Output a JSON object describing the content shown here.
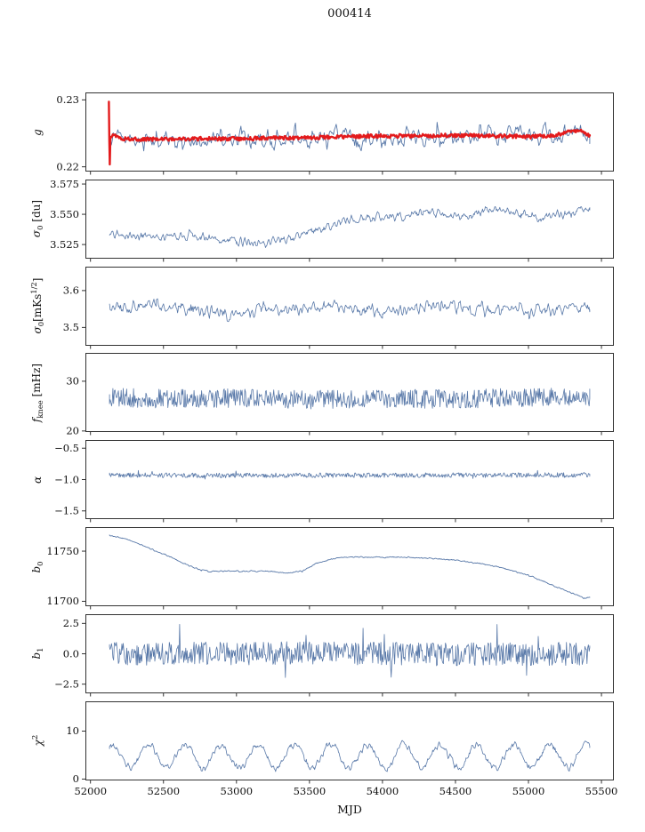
{
  "chart_data": {
    "type": "line",
    "title": "000414",
    "xlabel": "MJD",
    "x_axis": {
      "range": [
        51965,
        55585
      ],
      "ticks": [
        52000,
        52500,
        53000,
        53500,
        54000,
        54500,
        55000,
        55500
      ],
      "tick_labels": [
        "52000",
        "52500",
        "53000",
        "53500",
        "54000",
        "54500",
        "55000",
        "55500"
      ]
    },
    "panels": [
      {
        "name": "g",
        "ylabel_parts": [
          {
            "t": "g",
            "s": "it"
          }
        ],
        "ylim": [
          0.2193,
          0.2311
        ],
        "yticks": [
          {
            "v": 0.22,
            "label": "0.22"
          },
          {
            "v": 0.23,
            "label": "0.23"
          }
        ],
        "series": [
          {
            "name": "g-blue",
            "color": "#5878a8",
            "width": 0.9,
            "points": 520,
            "noise": 0.0021,
            "smooth": 2,
            "tail": {
              "p": 0.04,
              "m": 2.2
            },
            "trend": [
              [
                52130,
                0.2246
              ],
              [
                52250,
                0.224
              ],
              [
                52450,
                0.2239
              ],
              [
                52700,
                0.2239
              ],
              [
                52900,
                0.2241
              ],
              [
                53100,
                0.2239
              ],
              [
                53300,
                0.2238
              ],
              [
                53500,
                0.2242
              ],
              [
                53700,
                0.2244
              ],
              [
                53900,
                0.2245
              ],
              [
                54100,
                0.2246
              ],
              [
                54300,
                0.2247
              ],
              [
                54500,
                0.2246
              ],
              [
                54700,
                0.2247
              ],
              [
                54900,
                0.2246
              ],
              [
                55100,
                0.2246
              ],
              [
                55250,
                0.225
              ],
              [
                55350,
                0.2253
              ],
              [
                55420,
                0.2246
              ]
            ]
          },
          {
            "name": "g-red",
            "color": "#e31a1c",
            "width": 2.4,
            "points": 620,
            "noise": 0.00028,
            "smooth": 1,
            "trend": [
              [
                52126,
                0.2297
              ],
              [
                52129,
                0.224
              ],
              [
                52132,
                0.2206
              ],
              [
                52136,
                0.2246
              ],
              [
                52160,
                0.2248
              ],
              [
                52220,
                0.2242
              ],
              [
                52400,
                0.2241
              ],
              [
                52700,
                0.2242
              ],
              [
                53000,
                0.2242
              ],
              [
                53300,
                0.2243
              ],
              [
                53600,
                0.2244
              ],
              [
                53900,
                0.2246
              ],
              [
                54200,
                0.2246
              ],
              [
                54500,
                0.2247
              ],
              [
                54800,
                0.2246
              ],
              [
                55000,
                0.2245
              ],
              [
                55150,
                0.2246
              ],
              [
                55280,
                0.2252
              ],
              [
                55360,
                0.2255
              ],
              [
                55420,
                0.2245
              ]
            ]
          }
        ]
      },
      {
        "name": "sigma0-du",
        "ylabel_parts": [
          {
            "t": "σ",
            "s": "it"
          },
          {
            "t": "0",
            "s": "sub"
          },
          {
            "t": " [du]",
            "s": "n"
          }
        ],
        "ylim": [
          3.5133,
          3.5787
        ],
        "yticks": [
          {
            "v": 3.525,
            "label": "3.525"
          },
          {
            "v": 3.55,
            "label": "3.550"
          },
          {
            "v": 3.575,
            "label": "3.575"
          }
        ],
        "series": [
          {
            "name": "sigma0-du-line",
            "color": "#5878a8",
            "width": 0.8,
            "points": 700,
            "noise": 0.0055,
            "smooth": 2,
            "trend": [
              [
                52130,
                3.535
              ],
              [
                52300,
                3.533
              ],
              [
                52500,
                3.531
              ],
              [
                52700,
                3.533
              ],
              [
                52850,
                3.53
              ],
              [
                53000,
                3.528
              ],
              [
                53150,
                3.526
              ],
              [
                53300,
                3.529
              ],
              [
                53450,
                3.533
              ],
              [
                53600,
                3.539
              ],
              [
                53750,
                3.545
              ],
              [
                53900,
                3.548
              ],
              [
                54050,
                3.547
              ],
              [
                54200,
                3.55
              ],
              [
                54350,
                3.551
              ],
              [
                54500,
                3.548
              ],
              [
                54650,
                3.552
              ],
              [
                54800,
                3.554
              ],
              [
                54950,
                3.55
              ],
              [
                55100,
                3.547
              ],
              [
                55250,
                3.551
              ],
              [
                55420,
                3.555
              ]
            ]
          }
        ]
      },
      {
        "name": "sigma0-mks",
        "ylabel_parts": [
          {
            "t": "σ",
            "s": "it"
          },
          {
            "t": "0",
            "s": "sub"
          },
          {
            "t": "[mKs",
            "s": "n"
          },
          {
            "t": "1/2",
            "s": "sup"
          },
          {
            "t": "]",
            "s": "n"
          }
        ],
        "ylim": [
          3.45,
          3.665
        ],
        "yticks": [
          {
            "v": 3.5,
            "label": "3.5"
          },
          {
            "v": 3.6,
            "label": "3.6"
          }
        ],
        "series": [
          {
            "name": "sigma0-mks-line",
            "color": "#5878a8",
            "width": 0.8,
            "points": 650,
            "noise": 0.027,
            "smooth": 2,
            "trend": [
              [
                52130,
                3.545
              ],
              [
                52300,
                3.555
              ],
              [
                52450,
                3.565
              ],
              [
                52600,
                3.555
              ],
              [
                52800,
                3.545
              ],
              [
                53000,
                3.535
              ],
              [
                53200,
                3.555
              ],
              [
                53400,
                3.55
              ],
              [
                53600,
                3.555
              ],
              [
                53800,
                3.55
              ],
              [
                54000,
                3.54
              ],
              [
                54200,
                3.55
              ],
              [
                54400,
                3.56
              ],
              [
                54600,
                3.55
              ],
              [
                54800,
                3.55
              ],
              [
                55000,
                3.545
              ],
              [
                55200,
                3.55
              ],
              [
                55420,
                3.548
              ]
            ]
          }
        ]
      },
      {
        "name": "fknee",
        "ylabel_parts": [
          {
            "t": "f",
            "s": "it"
          },
          {
            "t": "knee",
            "s": "sub"
          },
          {
            "t": " [mHz]",
            "s": "n"
          }
        ],
        "ylim": [
          19.8,
          35.7
        ],
        "yticks": [
          {
            "v": 20,
            "label": "20"
          },
          {
            "v": 30,
            "label": "30"
          }
        ],
        "series": [
          {
            "name": "fknee-line",
            "color": "#5878a8",
            "width": 0.8,
            "points": 700,
            "noise": 1.9,
            "smooth": 1,
            "trend": [
              [
                52130,
                26.8
              ],
              [
                52500,
                26.5
              ],
              [
                53000,
                26.6
              ],
              [
                53500,
                26.3
              ],
              [
                54000,
                26.5
              ],
              [
                54500,
                26.4
              ],
              [
                55000,
                26.8
              ],
              [
                55420,
                26.8
              ]
            ]
          }
        ]
      },
      {
        "name": "alpha",
        "ylabel_parts": [
          {
            "t": "α",
            "s": "it"
          }
        ],
        "ylim": [
          -1.63,
          -0.37
        ],
        "yticks": [
          {
            "v": -1.5,
            "label": "−1.5"
          },
          {
            "v": -1.0,
            "label": "−1.0"
          },
          {
            "v": -0.5,
            "label": "−0.5"
          }
        ],
        "series": [
          {
            "name": "alpha-line",
            "color": "#5878a8",
            "width": 0.8,
            "points": 700,
            "noise": 0.038,
            "smooth": 1,
            "tail": {
              "p": 0.03,
              "m": 2.0
            },
            "trend": [
              [
                52130,
                -0.93
              ],
              [
                53000,
                -0.935
              ],
              [
                54000,
                -0.93
              ],
              [
                55000,
                -0.93
              ],
              [
                55420,
                -0.925
              ]
            ]
          }
        ]
      },
      {
        "name": "b0",
        "ylabel_parts": [
          {
            "t": "b",
            "s": "it"
          },
          {
            "t": "0",
            "s": "sub"
          }
        ],
        "ylim": [
          11695,
          11774
        ],
        "yticks": [
          {
            "v": 11700,
            "label": "11700"
          },
          {
            "v": 11750,
            "label": "11750"
          }
        ],
        "series": [
          {
            "name": "b0-line",
            "color": "#5878a8",
            "width": 0.9,
            "points": 800,
            "noise": 1.0,
            "smooth": 2,
            "trend": [
              [
                52130,
                11766
              ],
              [
                52250,
                11762
              ],
              [
                52400,
                11753
              ],
              [
                52550,
                11744
              ],
              [
                52700,
                11734
              ],
              [
                52760,
                11731
              ],
              [
                52800,
                11730
              ],
              [
                53000,
                11730
              ],
              [
                53200,
                11730
              ],
              [
                53350,
                11728
              ],
              [
                53450,
                11730
              ],
              [
                53550,
                11738
              ],
              [
                53650,
                11742
              ],
              [
                53750,
                11744
              ],
              [
                53900,
                11744
              ],
              [
                54100,
                11744
              ],
              [
                54300,
                11743
              ],
              [
                54500,
                11741
              ],
              [
                54700,
                11737
              ],
              [
                54800,
                11734
              ],
              [
                54900,
                11730
              ],
              [
                55000,
                11726
              ],
              [
                55100,
                11720
              ],
              [
                55200,
                11714
              ],
              [
                55300,
                11708
              ],
              [
                55380,
                11703
              ],
              [
                55420,
                11704
              ]
            ]
          }
        ]
      },
      {
        "name": "b1",
        "ylabel_parts": [
          {
            "t": "b",
            "s": "it"
          },
          {
            "t": "1",
            "s": "sub"
          }
        ],
        "ylim": [
          -3.25,
          3.25
        ],
        "yticks": [
          {
            "v": -2.5,
            "label": "−2.5"
          },
          {
            "v": 0,
            "label": "0.0"
          },
          {
            "v": 2.5,
            "label": "2.5"
          }
        ],
        "series": [
          {
            "name": "b1-line",
            "color": "#5878a8",
            "width": 0.8,
            "points": 700,
            "noise": 0.95,
            "smooth": 1,
            "tail": {
              "p": 0.03,
              "m": 2.8
            },
            "trend": [
              [
                52130,
                0
              ],
              [
                53500,
                0.05
              ],
              [
                54500,
                -0.05
              ],
              [
                55420,
                0
              ]
            ]
          }
        ]
      },
      {
        "name": "chi2",
        "ylabel_parts": [
          {
            "t": "χ",
            "s": "it"
          },
          {
            "t": "2",
            "s": "sup"
          }
        ],
        "ylim": [
          -0.3,
          16.2
        ],
        "yticks": [
          {
            "v": 0,
            "label": "0"
          },
          {
            "v": 10,
            "label": "10"
          }
        ],
        "series": [
          {
            "name": "chi2-line",
            "color": "#5878a8",
            "width": 0.8,
            "points": 750,
            "noise": 1.15,
            "smooth": 2,
            "osc": {
              "period": 250,
              "amp": 2.4,
              "phase": 1.2
            },
            "trend": [
              [
                52130,
                4.8
              ],
              [
                53000,
                4.6
              ],
              [
                54000,
                4.8
              ],
              [
                55000,
                4.7
              ],
              [
                55420,
                4.8
              ]
            ]
          }
        ]
      }
    ]
  }
}
